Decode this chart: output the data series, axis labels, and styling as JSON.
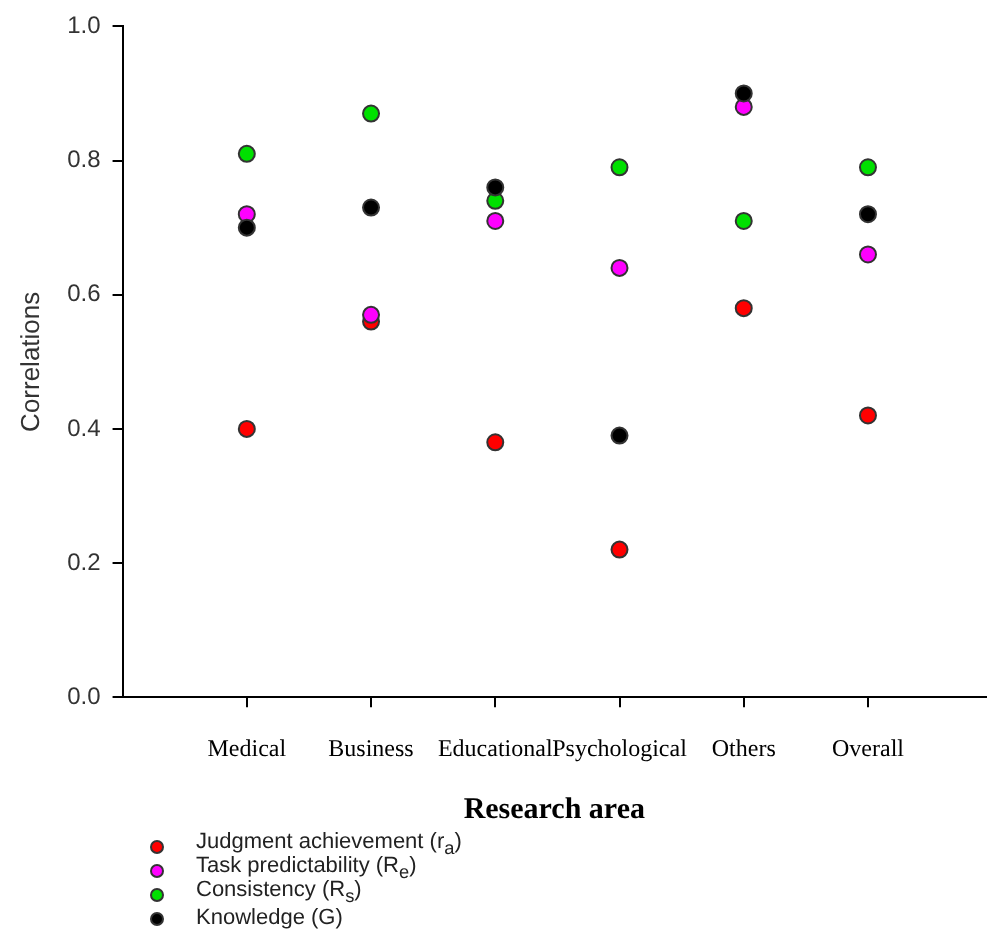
{
  "chart_data": {
    "type": "scatter",
    "xlabel": "Research area",
    "ylabel": "Correlations",
    "categories": [
      "Medical",
      "Business",
      "Educational",
      "Psychological",
      "Others",
      "Overall"
    ],
    "series": [
      {
        "name": "Judgment achievement (r$_{a}$)",
        "color": "#ff0000",
        "values": [
          0.4,
          0.56,
          0.38,
          0.22,
          0.58,
          0.42
        ]
      },
      {
        "name": "Task predictability (R$_{e}$)",
        "color": "#ff00ff",
        "values": [
          0.72,
          0.57,
          0.71,
          0.64,
          0.88,
          0.66
        ]
      },
      {
        "name": "Consistency (R$_{s}$)",
        "color": "#00e000",
        "values": [
          0.81,
          0.87,
          0.74,
          0.79,
          0.71,
          0.79
        ]
      },
      {
        "name": "Knowledge (G)",
        "color": "#000000",
        "values": [
          0.7,
          0.73,
          0.76,
          0.39,
          0.9,
          0.72
        ]
      }
    ],
    "ylim": [
      0,
      1
    ],
    "yticks": [
      {
        "value": 0,
        "label": "0.0"
      },
      0.2,
      0.4,
      0.6,
      0.8,
      {
        "value": 1,
        "label": "1.0"
      }
    ],
    "grid": false,
    "legend": "bottom",
    "marker": "circle"
  }
}
